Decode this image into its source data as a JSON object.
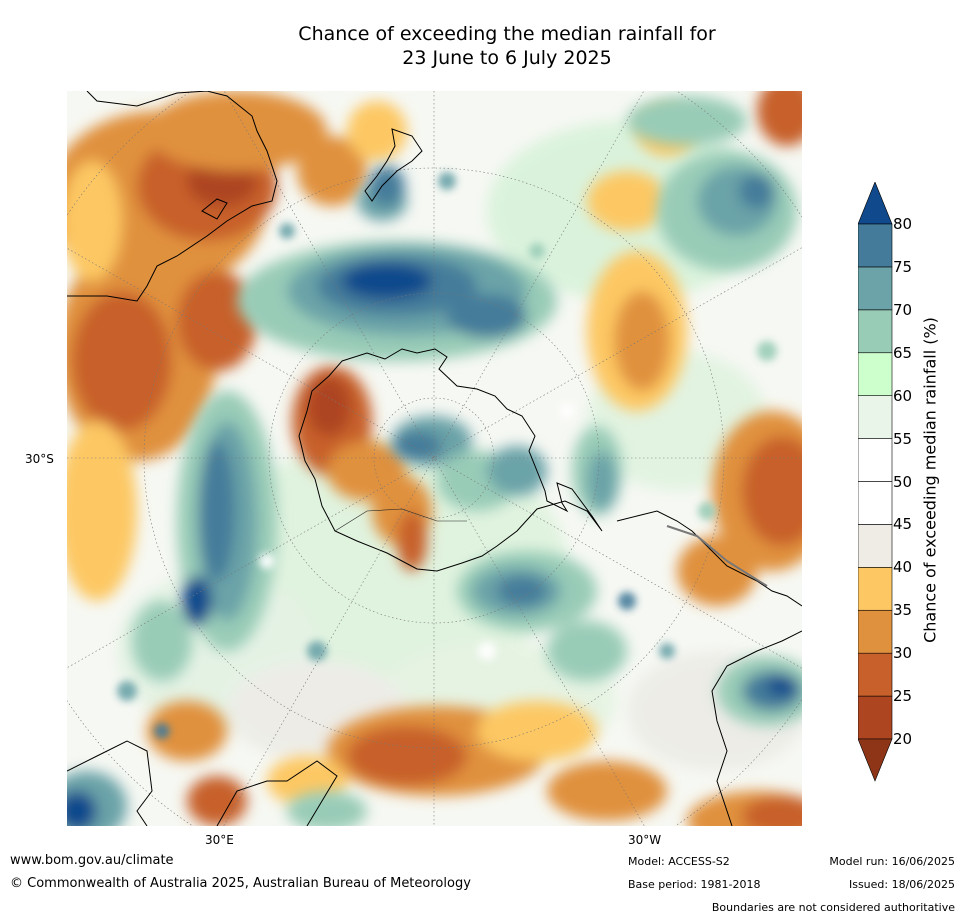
{
  "title": {
    "line1": "Chance of exceeding the median rainfall for",
    "line2": "23 June to 6 July 2025"
  },
  "map": {
    "projection": "south-polar-stereographic",
    "grid_labels": {
      "lat_30s": "30°S",
      "lon_30e": "30°E",
      "lon_30w": "30°W"
    }
  },
  "legend": {
    "label": "Chance of exceeding median rainfall (%)",
    "ticks": [
      "20",
      "25",
      "30",
      "35",
      "40",
      "45",
      "50",
      "55",
      "60",
      "65",
      "70",
      "75",
      "80"
    ],
    "colors": [
      "#ad4520",
      "#c7602a",
      "#e0913e",
      "#fdc864",
      "#efece6",
      "#ffffff",
      "#ffffff",
      "#eaf5ea",
      "#ccffcc",
      "#99ccb7",
      "#6ba3a8",
      "#457b9a"
    ],
    "under_color": "#8e3518",
    "over_color": "#104a8c"
  },
  "footer": {
    "website": "www.bom.gov.au/climate",
    "copyright": "© Commonwealth of Australia 2025, Australian Bureau of Meteorology",
    "model": "Model: ACCESS-S2",
    "base_period": "Base period: 1981-2018",
    "model_run": "Model run: 16/06/2025",
    "issued": "Issued: 18/06/2025",
    "disclaimer": "Boundaries are not considered authoritative"
  }
}
